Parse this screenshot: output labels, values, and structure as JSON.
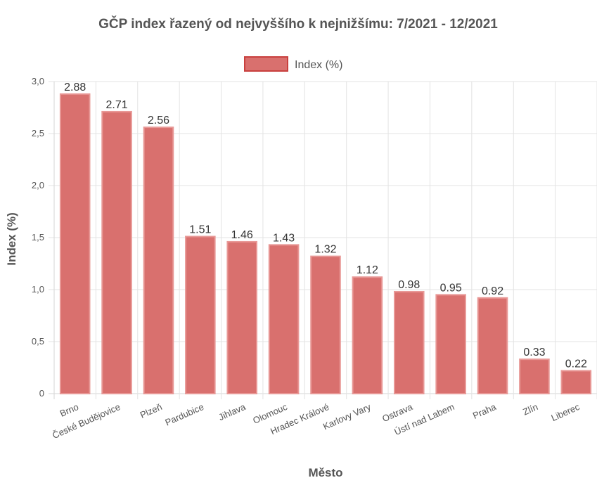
{
  "chart_data": {
    "type": "bar",
    "title": "GČP index řazený od nejvyššího k nejnižšímu: 7/2021 - 12/2021",
    "xlabel": "Město",
    "ylabel": "Index (%)",
    "ylim": [
      0,
      3
    ],
    "yticks": [
      "0",
      "0,5",
      "1,0",
      "1,5",
      "2,0",
      "2,5",
      "3,0"
    ],
    "grid": true,
    "legend_position": "top",
    "categories": [
      "Brno",
      "České Budějovice",
      "Plzeň",
      "Pardubice",
      "Jihlava",
      "Olomouc",
      "Hradec Králové",
      "Karlovy Vary",
      "Ostrava",
      "Ústí nad Labem",
      "Praha",
      "Zlín",
      "Liberec"
    ],
    "series": [
      {
        "name": "Index (%)",
        "values": [
          2.88,
          2.71,
          2.56,
          1.51,
          1.46,
          1.43,
          1.32,
          1.12,
          0.98,
          0.95,
          0.92,
          0.33,
          0.22
        ],
        "labels": [
          "2.88",
          "2.71",
          "2.56",
          "1.51",
          "1.46",
          "1.43",
          "1.32",
          "1.12",
          "0.98",
          "0.95",
          "0.92",
          "0.33",
          "0.22"
        ],
        "fill": "#d9706e",
        "border": "#e89896"
      }
    ]
  }
}
